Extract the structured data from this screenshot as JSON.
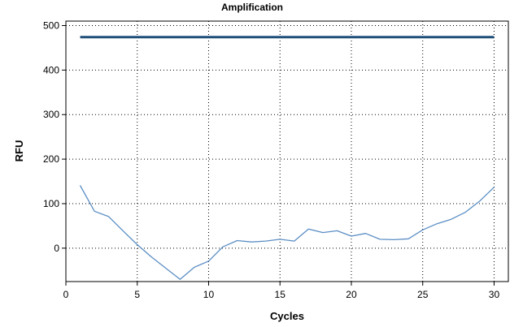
{
  "chart_data": {
    "type": "line",
    "title": "Amplification",
    "xlabel": "Cycles",
    "ylabel": "RFU",
    "xlim": [
      0,
      31
    ],
    "ylim": [
      -75,
      510
    ],
    "xticks": [
      0,
      5,
      10,
      15,
      20,
      25,
      30
    ],
    "yticks": [
      0,
      100,
      200,
      300,
      400,
      500
    ],
    "grid": true,
    "grid_style": "dotted",
    "colors": {
      "threshold": "#1f4e79",
      "series": "#5b8ec4"
    },
    "threshold": {
      "y": 474,
      "x_range": [
        1,
        30
      ]
    },
    "series": [
      {
        "x": [
          1,
          2,
          3,
          4,
          5,
          6,
          7,
          8,
          9,
          10,
          11,
          12,
          13,
          14,
          15,
          16,
          17,
          18,
          19,
          20,
          21,
          22,
          23,
          24,
          25,
          26,
          27,
          28,
          29,
          30
        ],
        "values": [
          141,
          83,
          71,
          39,
          8,
          -20,
          -45,
          -70,
          -43,
          -29,
          3,
          17,
          14,
          16,
          20,
          16,
          43,
          35,
          39,
          27,
          33,
          20,
          19,
          21,
          41,
          55,
          65,
          81,
          106,
          137
        ]
      }
    ]
  }
}
